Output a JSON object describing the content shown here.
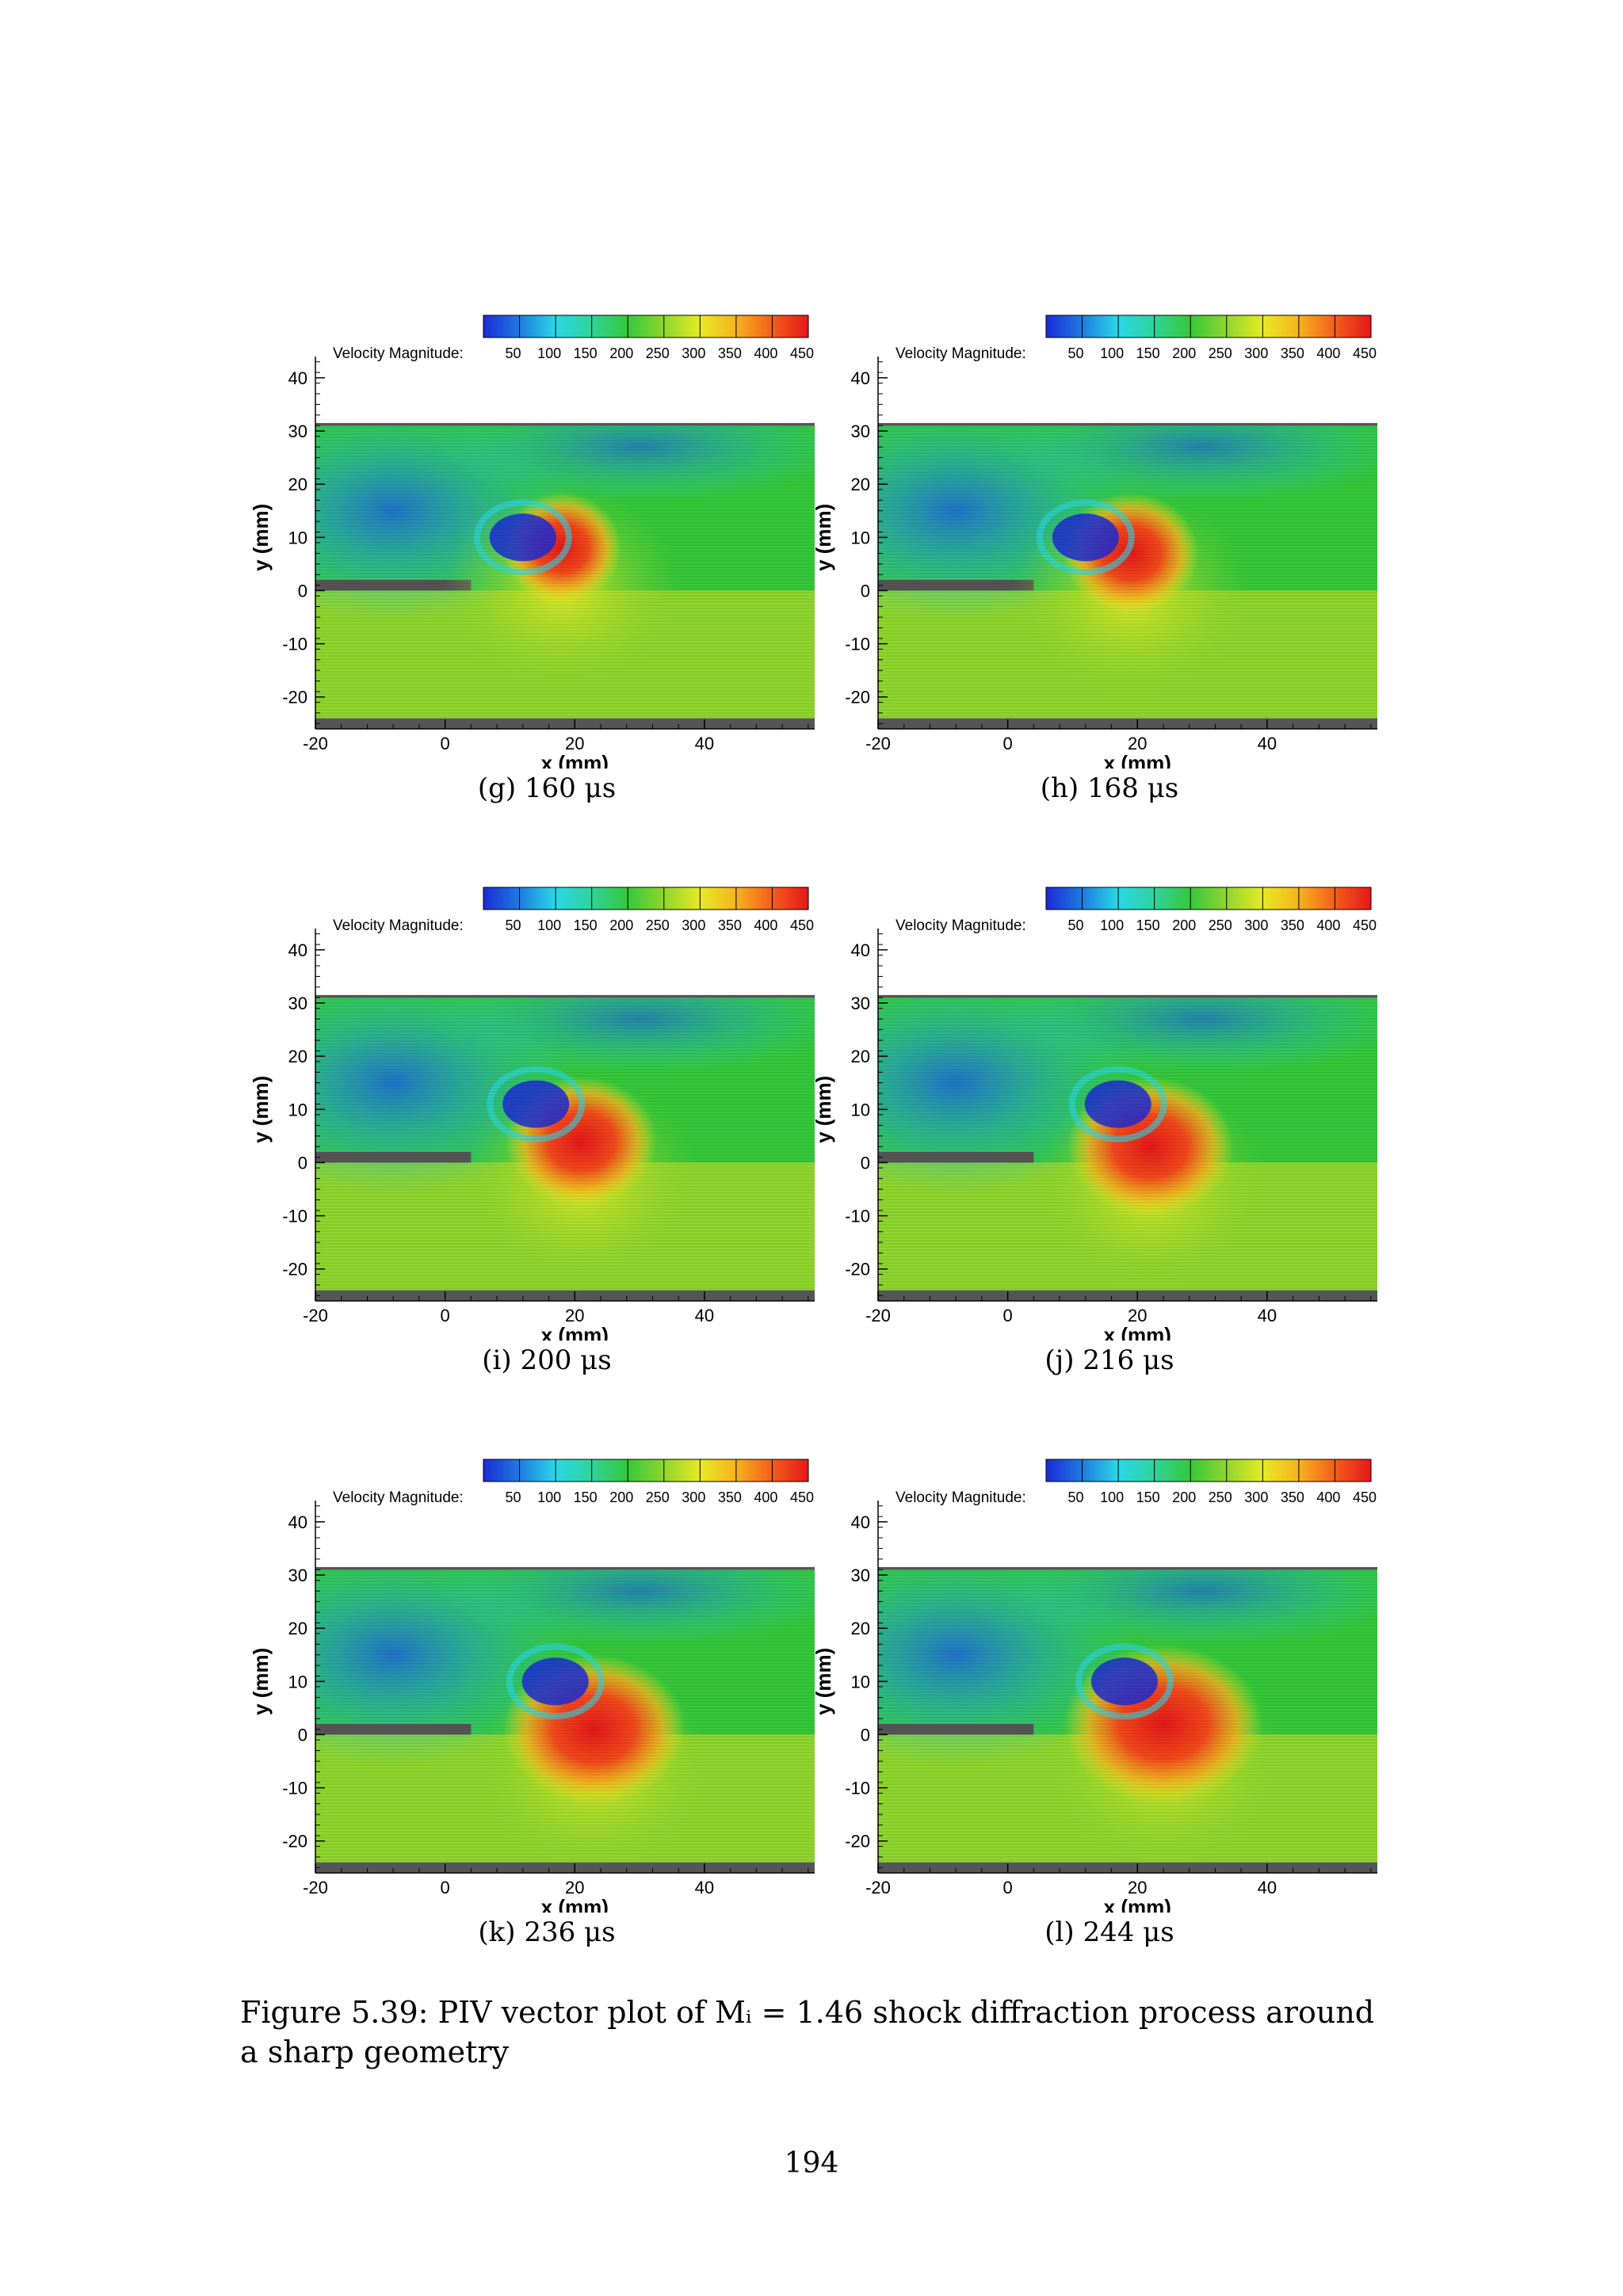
{
  "figure": {
    "caption_label": "Figure 5.39:",
    "caption_text": "PIV vector plot of Mᵢ = 1.46 shock diffraction process around a sharp geometry",
    "page_number": "194"
  },
  "colors": {
    "colormap": [
      "#1b2bd6",
      "#1e7be0",
      "#2ad8e6",
      "#2fd39a",
      "#35c83a",
      "#8fd62d",
      "#e7ea24",
      "#f6b21f",
      "#f35d1b",
      "#e5181a"
    ],
    "background_block": "#555555"
  },
  "chart_data": [
    {
      "type": "heatmap",
      "panel": "(g)",
      "caption": "(g) 160 μs",
      "quantity": "Velocity Magnitude",
      "legend_label": "Velocity Magnitude:",
      "legend_ticks": [
        "50",
        "100",
        "150",
        "200",
        "250",
        "300",
        "350",
        "400",
        "450"
      ],
      "color_range": [
        0,
        450
      ],
      "xlabel": "x (mm)",
      "ylabel": "y (mm)",
      "xticks": [
        "-20",
        "0",
        "20",
        "40"
      ],
      "yticks": [
        "40",
        "30",
        "20",
        "10",
        "0",
        "-10",
        "-20"
      ],
      "xlim": [
        -20,
        57
      ],
      "ylim": [
        -26,
        44
      ],
      "vortex_center": [
        12,
        10
      ],
      "high_speed_peak": [
        18,
        8
      ],
      "max_velocity_region": "red band curving up to y≈16"
    },
    {
      "type": "heatmap",
      "panel": "(h)",
      "caption": "(h) 168 μs",
      "quantity": "Velocity Magnitude",
      "legend_label": "Velocity Magnitude:",
      "legend_ticks": [
        "50",
        "100",
        "150",
        "200",
        "250",
        "300",
        "350",
        "400",
        "450"
      ],
      "color_range": [
        0,
        450
      ],
      "xlabel": "x (mm)",
      "ylabel": "y (mm)",
      "xticks": [
        "-20",
        "0",
        "20",
        "40"
      ],
      "yticks": [
        "40",
        "30",
        "20",
        "10",
        "0",
        "-10",
        "-20"
      ],
      "xlim": [
        -20,
        57
      ],
      "ylim": [
        -26,
        44
      ],
      "vortex_center": [
        12,
        10
      ],
      "high_speed_peak": [
        19,
        7
      ],
      "max_velocity_region": "red band curving up to y≈16"
    },
    {
      "type": "heatmap",
      "panel": "(i)",
      "caption": "(i) 200 μs",
      "quantity": "Velocity Magnitude",
      "legend_label": "Velocity Magnitude:",
      "legend_ticks": [
        "50",
        "100",
        "150",
        "200",
        "250",
        "300",
        "350",
        "400",
        "450"
      ],
      "color_range": [
        0,
        450
      ],
      "xlabel": "x (mm)",
      "ylabel": "y (mm)",
      "xticks": [
        "-20",
        "0",
        "20",
        "40"
      ],
      "yticks": [
        "40",
        "30",
        "20",
        "10",
        "0",
        "-10",
        "-20"
      ],
      "xlim": [
        -20,
        57
      ],
      "ylim": [
        -26,
        44
      ],
      "vortex_center": [
        14,
        11
      ],
      "high_speed_peak": [
        21,
        4
      ],
      "max_velocity_region": "red plume to y≈12"
    },
    {
      "type": "heatmap",
      "panel": "(j)",
      "caption": "(j) 216 μs",
      "quantity": "Velocity Magnitude",
      "legend_label": "Velocity Magnitude:",
      "legend_ticks": [
        "50",
        "100",
        "150",
        "200",
        "250",
        "300",
        "350",
        "400",
        "450"
      ],
      "color_range": [
        0,
        450
      ],
      "xlabel": "x (mm)",
      "ylabel": "y (mm)",
      "xticks": [
        "-20",
        "0",
        "20",
        "40"
      ],
      "yticks": [
        "40",
        "30",
        "20",
        "10",
        "0",
        "-10",
        "-20"
      ],
      "xlim": [
        -20,
        57
      ],
      "ylim": [
        -26,
        44
      ],
      "vortex_center": [
        17,
        11
      ],
      "high_speed_peak": [
        22,
        3
      ],
      "max_velocity_region": "red plume to y≈11"
    },
    {
      "type": "heatmap",
      "panel": "(k)",
      "caption": "(k) 236 μs",
      "quantity": "Velocity Magnitude",
      "legend_label": "Velocity Magnitude:",
      "legend_ticks": [
        "50",
        "100",
        "150",
        "200",
        "250",
        "300",
        "350",
        "400",
        "450"
      ],
      "color_range": [
        0,
        450
      ],
      "xlabel": "x (mm)",
      "ylabel": "y (mm)",
      "xticks": [
        "-20",
        "0",
        "20",
        "40"
      ],
      "yticks": [
        "40",
        "30",
        "20",
        "10",
        "0",
        "-10",
        "-20"
      ],
      "xlim": [
        -20,
        57
      ],
      "ylim": [
        -26,
        44
      ],
      "vortex_center": [
        17,
        10
      ],
      "high_speed_peak": [
        23,
        1
      ],
      "max_velocity_region": "broad red region to y≈10"
    },
    {
      "type": "heatmap",
      "panel": "(l)",
      "caption": "(l) 244 μs",
      "quantity": "Velocity Magnitude",
      "legend_label": "Velocity Magnitude:",
      "legend_ticks": [
        "50",
        "100",
        "150",
        "200",
        "250",
        "300",
        "350",
        "400",
        "450"
      ],
      "color_range": [
        0,
        450
      ],
      "xlabel": "x (mm)",
      "ylabel": "y (mm)",
      "xticks": [
        "-20",
        "0",
        "20",
        "40"
      ],
      "yticks": [
        "40",
        "30",
        "20",
        "10",
        "0",
        "-10",
        "-20"
      ],
      "xlim": [
        -20,
        57
      ],
      "ylim": [
        -26,
        44
      ],
      "vortex_center": [
        18,
        10
      ],
      "high_speed_peak": [
        24,
        2
      ],
      "max_velocity_region": "red region to y≈8"
    }
  ]
}
